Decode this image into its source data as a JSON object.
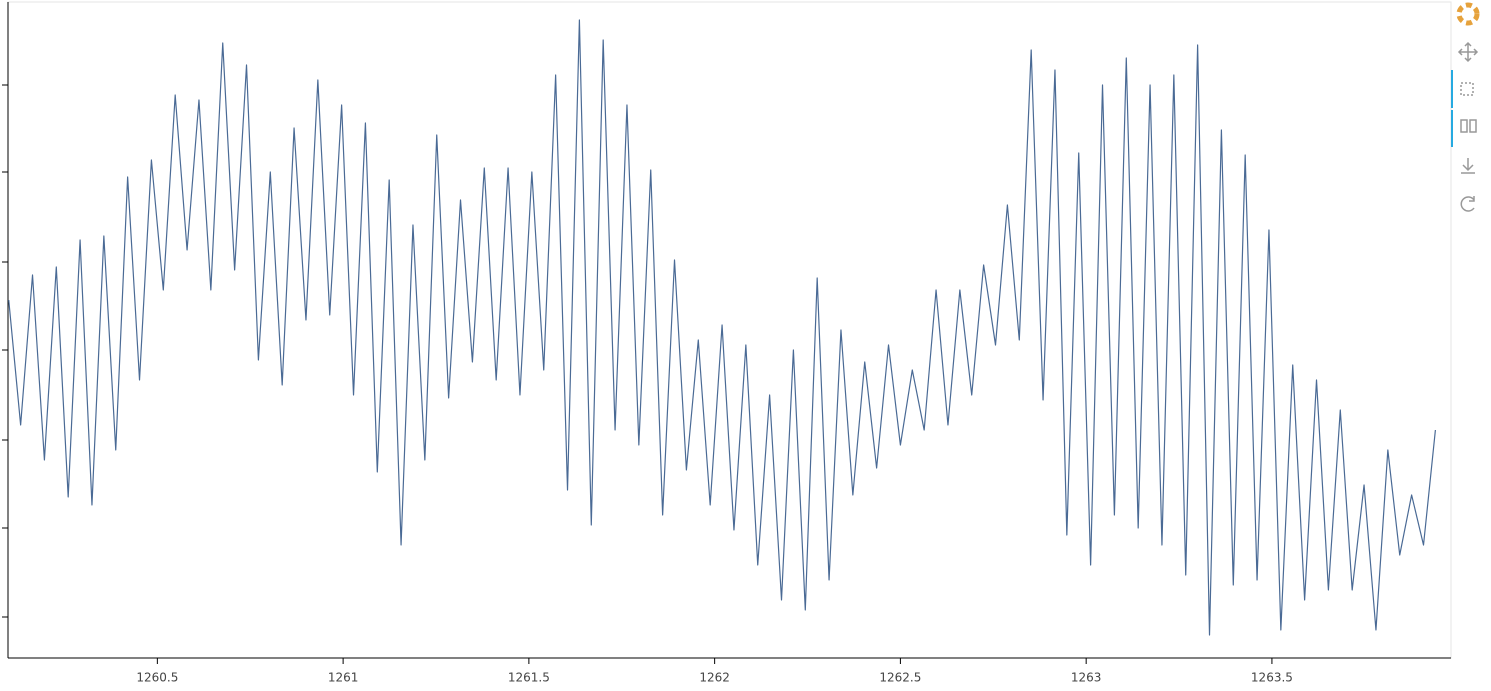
{
  "chart_data": {
    "type": "line",
    "x": [
      1260.1,
      1260.132,
      1260.164,
      1260.196,
      1260.228,
      1260.26,
      1260.292,
      1260.324,
      1260.356,
      1260.388,
      1260.42,
      1260.452,
      1260.484,
      1260.516,
      1260.548,
      1260.58,
      1260.612,
      1260.644,
      1260.676,
      1260.708,
      1260.74,
      1260.772,
      1260.804,
      1260.836,
      1260.868,
      1260.9,
      1260.932,
      1260.964,
      1260.996,
      1261.028,
      1261.06,
      1261.092,
      1261.124,
      1261.156,
      1261.188,
      1261.22,
      1261.252,
      1261.284,
      1261.316,
      1261.348,
      1261.38,
      1261.412,
      1261.444,
      1261.476,
      1261.508,
      1261.54,
      1261.572,
      1261.604,
      1261.636,
      1261.668,
      1261.7,
      1261.732,
      1261.764,
      1261.796,
      1261.828,
      1261.86,
      1261.892,
      1261.924,
      1261.956,
      1261.988,
      1262.02,
      1262.052,
      1262.084,
      1262.116,
      1262.148,
      1262.18,
      1262.212,
      1262.244,
      1262.276,
      1262.308,
      1262.34,
      1262.372,
      1262.404,
      1262.436,
      1262.468,
      1262.5,
      1262.532,
      1262.564,
      1262.596,
      1262.628,
      1262.66,
      1262.692,
      1262.724,
      1262.756,
      1262.788,
      1262.82,
      1262.852,
      1262.884,
      1262.916,
      1262.948,
      1262.98,
      1263.012,
      1263.044,
      1263.076,
      1263.108,
      1263.14,
      1263.172,
      1263.204,
      1263.236,
      1263.268,
      1263.3,
      1263.332,
      1263.364,
      1263.396,
      1263.428,
      1263.46,
      1263.492,
      1263.524,
      1263.556,
      1263.588,
      1263.62,
      1263.652,
      1263.684,
      1263.716,
      1263.748,
      1263.78,
      1263.812,
      1263.844,
      1263.876,
      1263.908,
      1263.94
    ],
    "values": [
      358,
      233,
      383,
      198,
      391,
      161,
      418,
      153,
      422,
      208,
      481,
      278,
      498,
      368,
      563,
      408,
      558,
      368,
      615,
      388,
      593,
      298,
      486,
      273,
      530,
      338,
      578,
      343,
      553,
      263,
      535,
      186,
      478,
      113,
      433,
      198,
      523,
      260,
      458,
      296,
      490,
      278,
      490,
      263,
      486,
      288,
      583,
      168,
      638,
      133,
      618,
      228,
      553,
      213,
      488,
      143,
      398,
      188,
      318,
      153,
      333,
      128,
      313,
      93,
      263,
      58,
      308,
      48,
      380,
      78,
      328,
      163,
      296,
      190,
      313,
      213,
      288,
      228,
      368,
      233,
      368,
      263,
      393,
      313,
      453,
      318,
      608,
      258,
      588,
      123,
      505,
      93,
      573,
      143,
      600,
      130,
      573,
      113,
      583,
      83,
      613,
      23,
      528,
      73,
      503,
      78,
      428,
      28,
      293,
      58,
      278,
      68,
      248,
      68,
      173,
      28,
      208,
      103,
      163,
      113,
      228
    ],
    "color": "#4a6a95",
    "xlim": [
      1260.098,
      1263.982
    ],
    "ylim": [
      0,
      656
    ],
    "xticks": [
      1260.5,
      1261,
      1261.5,
      1262,
      1262.5,
      1263,
      1263.5
    ],
    "yticks": [
      41,
      130,
      218,
      308,
      396,
      486,
      573
    ],
    "grid": false
  }
}
